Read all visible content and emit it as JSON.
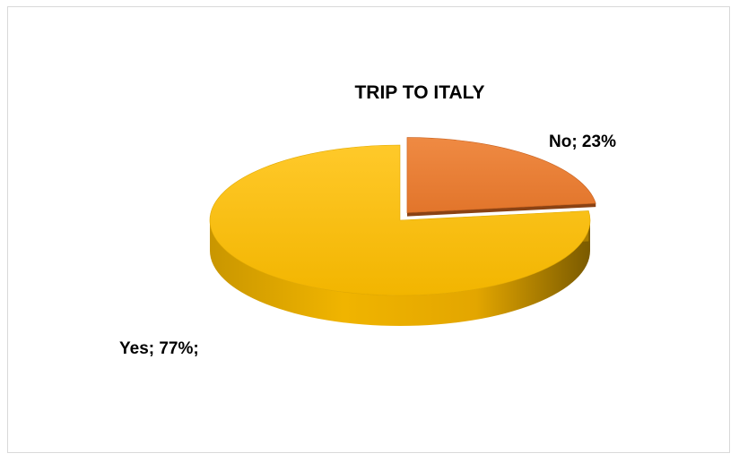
{
  "chart_data": {
    "type": "pie",
    "style": "3d",
    "title": "TRIP TO ITALY",
    "slices": [
      {
        "label": "No",
        "value": 23,
        "display": "No; 23%",
        "color": "#ED7D31",
        "exploded": true
      },
      {
        "label": "Yes",
        "value": 77,
        "display": "Yes; 77%;",
        "color": "#FFC000",
        "exploded": false
      }
    ]
  }
}
